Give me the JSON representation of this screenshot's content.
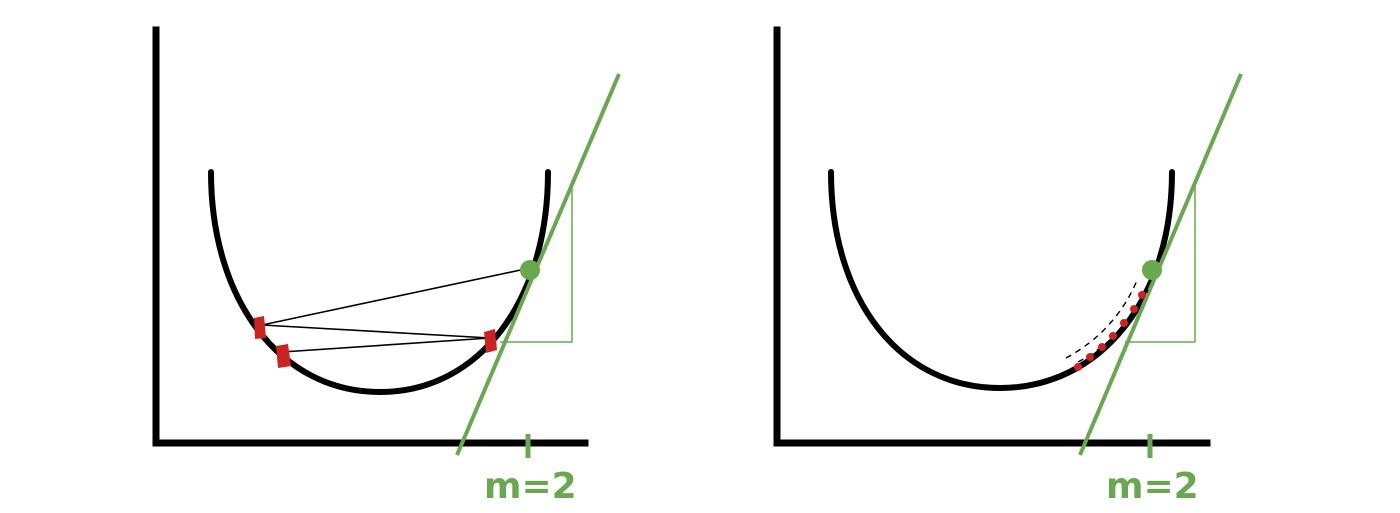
{
  "colors": {
    "axis": "#000000",
    "accent": "#6aa84f",
    "step_point": "#cc2222",
    "minimum_point": "#6aa84f"
  },
  "panels": [
    {
      "label": "m=2"
    },
    {
      "label": "m=2"
    }
  ]
}
